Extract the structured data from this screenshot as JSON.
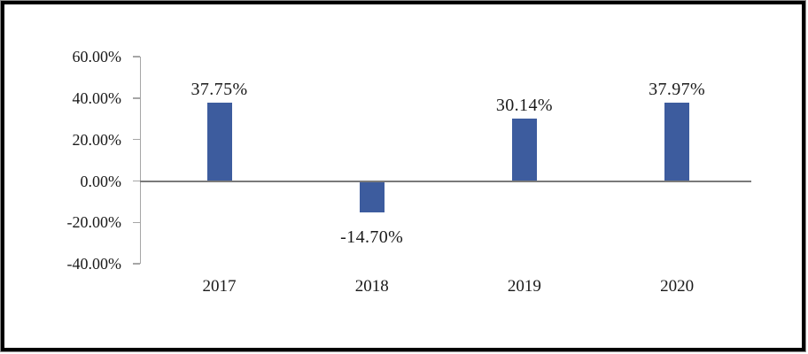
{
  "chart_data": {
    "type": "bar",
    "title": "",
    "xlabel": "",
    "ylabel": "",
    "categories": [
      "2017",
      "2018",
      "2019",
      "2020"
    ],
    "values": [
      37.75,
      -14.7,
      30.14,
      37.97
    ],
    "bar_labels": [
      "37.75%",
      "-14.70%",
      "30.14%",
      "37.97%"
    ],
    "y_ticks": [
      {
        "value": 60,
        "label": "60.00%"
      },
      {
        "value": 40,
        "label": "40.00%"
      },
      {
        "value": 20,
        "label": "20.00%"
      },
      {
        "value": 0,
        "label": "0.00%"
      },
      {
        "value": -20,
        "label": "-20.00%"
      },
      {
        "value": -40,
        "label": "-40.00%"
      }
    ],
    "ylim": [
      -40,
      60
    ],
    "grid": false,
    "legend": null,
    "colors": {
      "bar": "#3D5C9E",
      "axis": "#A6A6A6",
      "zero_line": "#7A7A7A",
      "label_text": "#1A1A1A",
      "frame_border": "#000000",
      "background": "#FFFFFF"
    }
  }
}
